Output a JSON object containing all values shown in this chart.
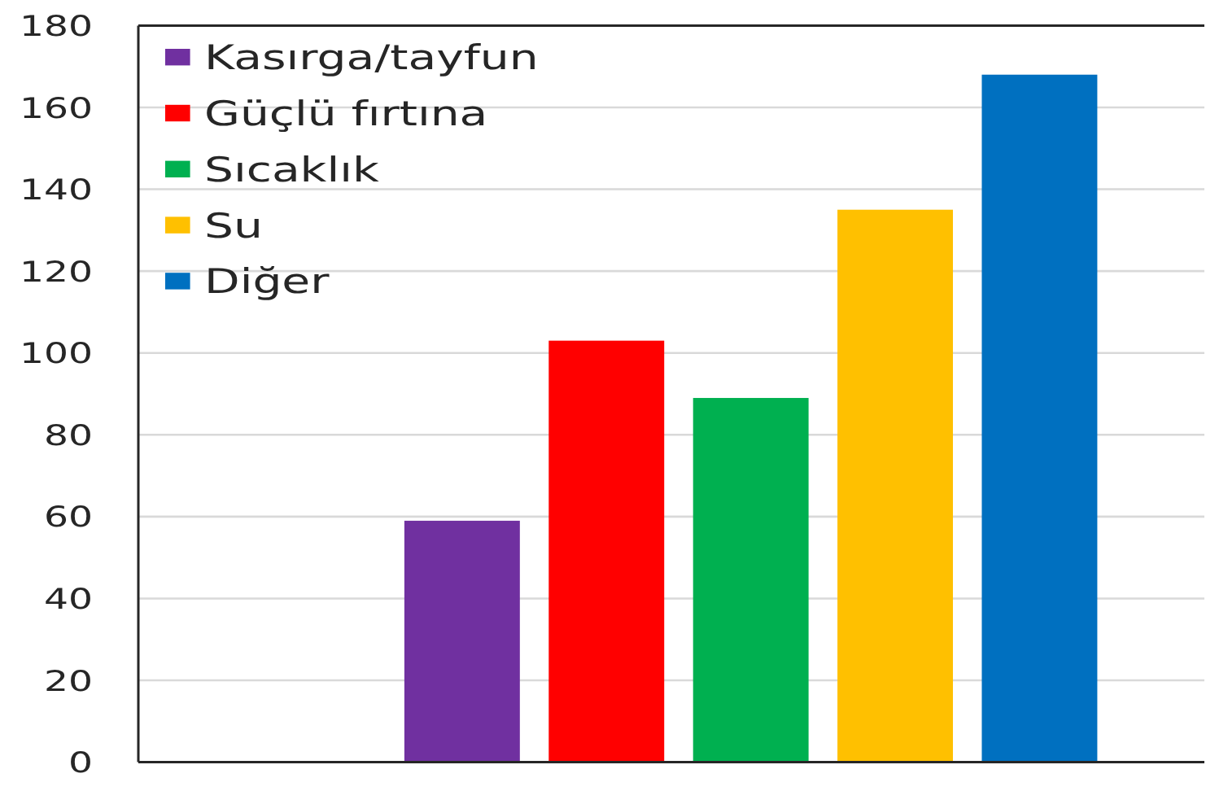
{
  "chart_data": {
    "type": "bar",
    "categories": [
      null
    ],
    "series": [
      {
        "name": "Kasırga/tayfun",
        "color": "#7030a0",
        "values": [
          59
        ]
      },
      {
        "name": "Güçlü fırtına",
        "color": "#ff0000",
        "values": [
          103
        ]
      },
      {
        "name": "Sıcaklık",
        "color": "#00b050",
        "values": [
          89
        ]
      },
      {
        "name": "Su",
        "color": "#ffc000",
        "values": [
          135
        ]
      },
      {
        "name": "Diğer",
        "color": "#0070c0",
        "values": [
          168
        ]
      }
    ],
    "ylim": [
      0,
      180
    ],
    "yticks": [
      0,
      20,
      40,
      60,
      80,
      100,
      120,
      140,
      160,
      180
    ],
    "grid": "y",
    "legend": "top left"
  }
}
